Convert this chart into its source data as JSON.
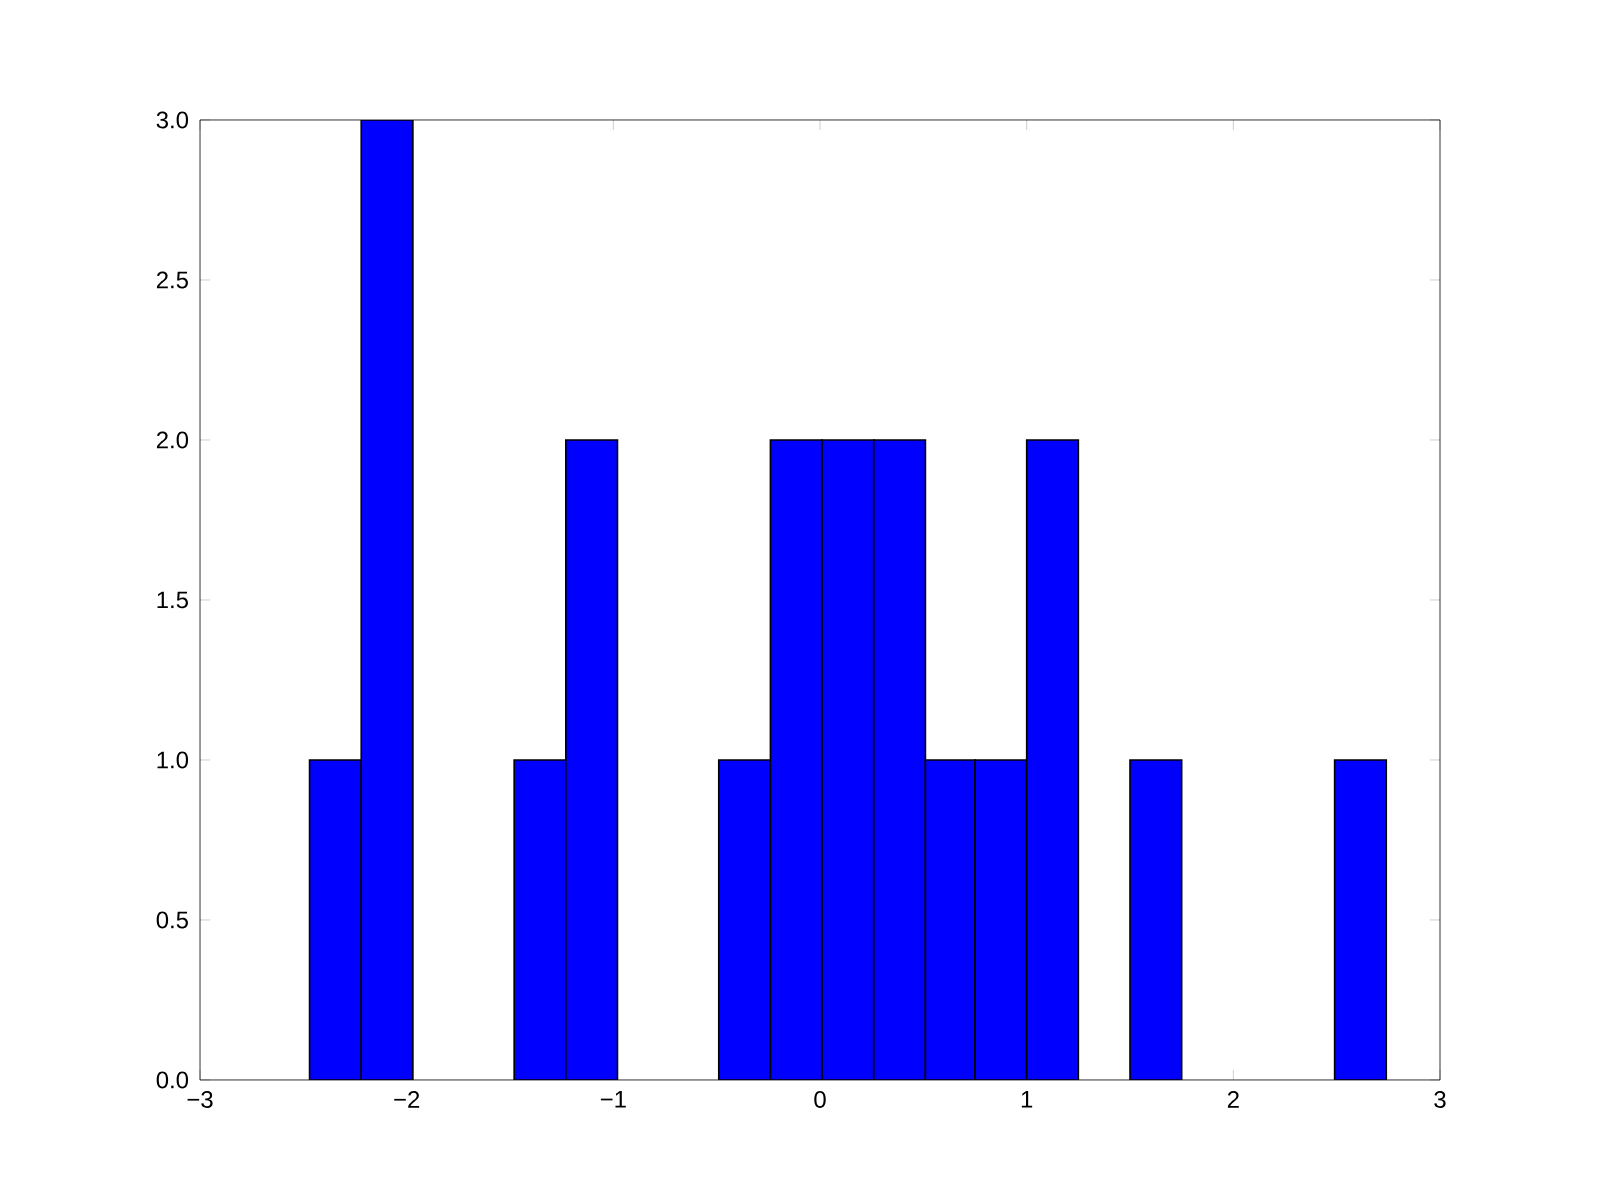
{
  "chart_data": {
    "type": "histogram",
    "bins": [
      -2.47,
      -2.22,
      -1.97,
      -1.48,
      -1.23,
      -0.98,
      -0.49,
      -0.24,
      0.01,
      0.26,
      0.51,
      0.75,
      1.0,
      1.25,
      1.5,
      1.75,
      2.49,
      2.74
    ],
    "values": [
      1,
      3,
      0,
      1,
      2,
      0,
      1,
      2,
      2,
      2,
      1,
      1,
      2,
      0,
      1,
      0,
      1
    ],
    "color": "#0000ff",
    "xlim": [
      -3,
      3
    ],
    "xticks": [
      {
        "value": -3,
        "label": "−3"
      },
      {
        "value": -2,
        "label": "−2"
      },
      {
        "value": -1,
        "label": "−1"
      },
      0,
      1,
      2,
      3
    ],
    "ylim": [
      0,
      3.0
    ],
    "yticks": [
      {
        "value": 0,
        "label": "0.0"
      },
      {
        "value": 0.5,
        "label": "0.5"
      },
      {
        "value": 1,
        "label": "1.0"
      },
      {
        "value": 1.5,
        "label": "1.5"
      },
      {
        "value": 2,
        "label": "2.0"
      },
      {
        "value": 2.5,
        "label": "2.5"
      },
      {
        "value": 3,
        "label": "3.0"
      }
    ]
  }
}
